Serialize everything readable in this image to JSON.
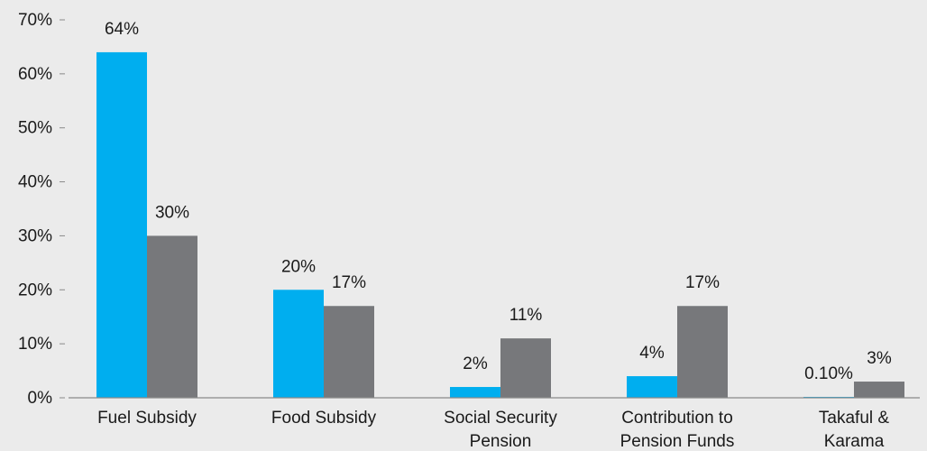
{
  "chart_data": {
    "type": "bar",
    "title": "",
    "xlabel": "",
    "ylabel": "",
    "ylim": [
      0,
      70
    ],
    "y_ticks": [
      "0%",
      "10%",
      "20%",
      "30%",
      "40%",
      "50%",
      "60%",
      "70%"
    ],
    "grid": false,
    "legend": "none",
    "categories": [
      [
        "Fuel Subsidy"
      ],
      [
        "Food Subsidy"
      ],
      [
        "Social Security",
        "Pension"
      ],
      [
        "Contribution to",
        "Pension Funds"
      ],
      [
        "Takaful &",
        "Karama"
      ]
    ],
    "series": [
      {
        "color": "#00aeef",
        "values": [
          64,
          20,
          2,
          4,
          0.1
        ],
        "labels": [
          "64%",
          "20%",
          "2%",
          "4%",
          "0.10%"
        ]
      },
      {
        "color": "#77787b",
        "values": [
          30,
          17,
          11,
          17,
          3
        ],
        "labels": [
          "30%",
          "17%",
          "11%",
          "17%",
          "3%"
        ]
      }
    ],
    "axis_color": "#8a8a8a"
  }
}
